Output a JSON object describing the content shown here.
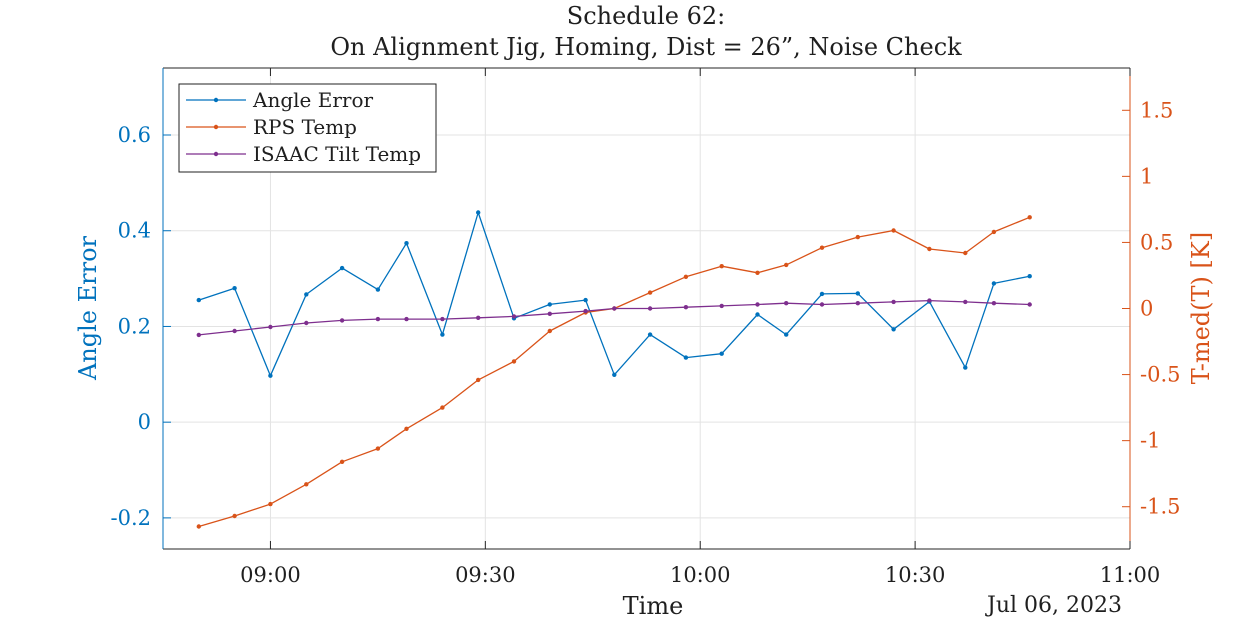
{
  "chart_data": {
    "type": "line",
    "title_lines": [
      "Schedule 62:",
      "On Alignment Jig, Homing, Dist = 26”, Noise Check"
    ],
    "xlabel": "Time",
    "date_label": "Jul 06, 2023",
    "x_ticks": [
      "09:00",
      "09:30",
      "10:00",
      "10:30",
      "11:00"
    ],
    "xlim": [
      "08:45",
      "11:00"
    ],
    "left_axis": {
      "label": "Angle Error",
      "ylim": [
        -0.265,
        0.74
      ],
      "ticks": [
        -0.2,
        0,
        0.2,
        0.4,
        0.6
      ],
      "tick_labels": [
        "-0.2",
        "0",
        "0.2",
        "0.4",
        "0.6"
      ],
      "color": "#0072bd"
    },
    "right_axis": {
      "label": "T-med(T) [K]",
      "ylim": [
        -1.82,
        1.82
      ],
      "ticks": [
        -1.5,
        -1,
        -0.5,
        0,
        0.5,
        1,
        1.5
      ],
      "tick_labels": [
        "-1.5",
        "-1",
        "-0.5",
        "0",
        "0.5",
        "1",
        "1.5"
      ],
      "color": "#d95319"
    },
    "grid": true,
    "legend_position": "top-left",
    "series": [
      {
        "name": "Angle Error",
        "axis": "left",
        "color": "#0072bd",
        "x": [
          "08:50",
          "08:55",
          "09:00",
          "09:05",
          "09:10",
          "09:15",
          "09:19",
          "09:24",
          "09:29",
          "09:34",
          "09:39",
          "09:44",
          "09:48",
          "09:53",
          "09:58",
          "10:03",
          "10:08",
          "10:12",
          "10:17",
          "10:22",
          "10:27",
          "10:32",
          "10:37",
          "10:41",
          "10:46"
        ],
        "values": [
          0.255,
          0.28,
          0.097,
          0.267,
          0.322,
          0.277,
          0.374,
          0.183,
          0.438,
          0.217,
          0.246,
          0.255,
          0.099,
          0.183,
          0.135,
          0.143,
          0.225,
          0.183,
          0.268,
          0.269,
          0.194,
          0.252,
          0.114,
          0.29,
          0.305
        ]
      },
      {
        "name": "RPS Temp",
        "axis": "right",
        "color": "#d95319",
        "x": [
          "08:50",
          "08:55",
          "09:00",
          "09:05",
          "09:10",
          "09:15",
          "09:19",
          "09:24",
          "09:29",
          "09:34",
          "09:39",
          "09:44",
          "09:48",
          "09:53",
          "09:58",
          "10:03",
          "10:08",
          "10:12",
          "10:17",
          "10:22",
          "10:27",
          "10:32",
          "10:37",
          "10:41",
          "10:46"
        ],
        "values": [
          -1.65,
          -1.57,
          -1.48,
          -1.33,
          -1.16,
          -1.06,
          -0.91,
          -0.75,
          -0.54,
          -0.4,
          -0.17,
          -0.03,
          0.0,
          0.12,
          0.24,
          0.32,
          0.27,
          0.33,
          0.46,
          0.54,
          0.59,
          0.45,
          0.42,
          0.58,
          0.69
        ]
      },
      {
        "name": "ISAAC Tilt Temp",
        "axis": "right",
        "color": "#7e2f8e",
        "x": [
          "08:50",
          "08:55",
          "09:00",
          "09:05",
          "09:10",
          "09:15",
          "09:19",
          "09:24",
          "09:29",
          "09:34",
          "09:39",
          "09:44",
          "09:48",
          "09:53",
          "09:58",
          "10:03",
          "10:08",
          "10:12",
          "10:17",
          "10:22",
          "10:27",
          "10:32",
          "10:37",
          "10:41",
          "10:46"
        ],
        "values": [
          -0.2,
          -0.17,
          -0.14,
          -0.11,
          -0.09,
          -0.08,
          -0.08,
          -0.08,
          -0.07,
          -0.06,
          -0.04,
          -0.02,
          0.0,
          0.0,
          0.01,
          0.02,
          0.03,
          0.04,
          0.03,
          0.04,
          0.05,
          0.06,
          0.05,
          0.04,
          0.03
        ]
      }
    ]
  }
}
